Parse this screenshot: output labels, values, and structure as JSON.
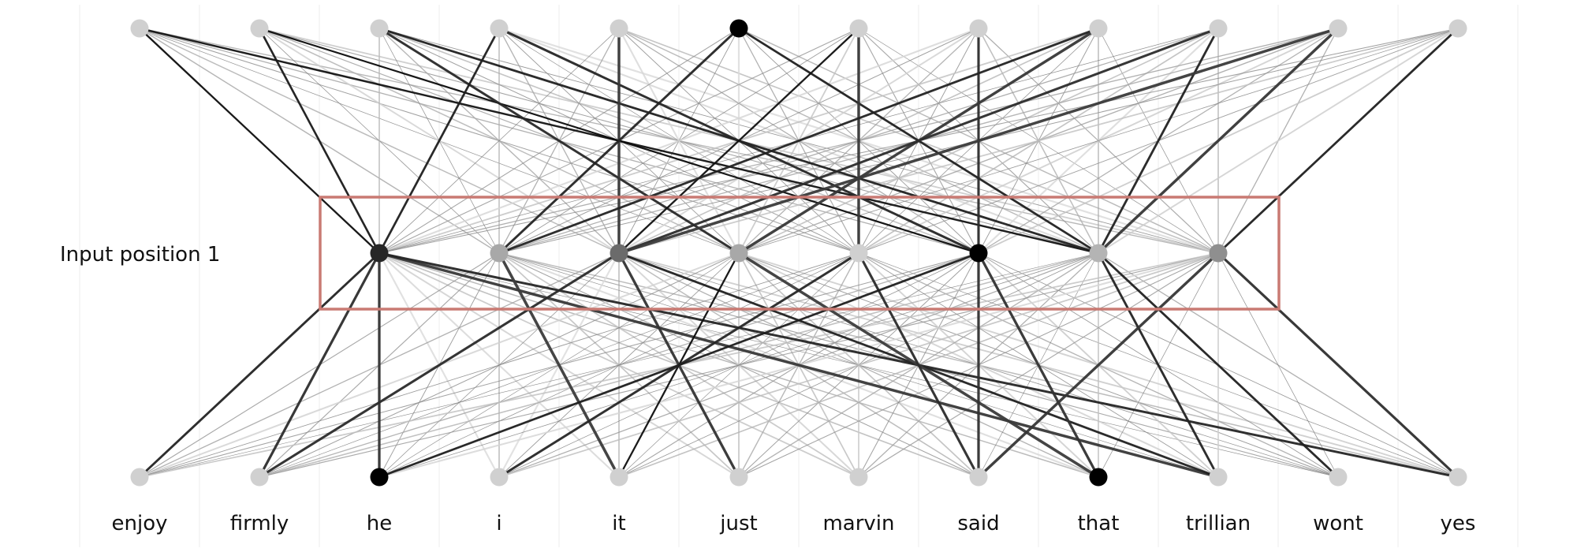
{
  "words": [
    "enjoy",
    "firmly",
    "he",
    "i",
    "it",
    "just",
    "marvin",
    "said",
    "that",
    "trillian",
    "wont",
    "yes"
  ],
  "row_label": "Input position 1",
  "highlight_color": "#c97a73",
  "layers": [
    {
      "name": "top",
      "node_shades": [
        "#d0d0d0",
        "#d0d0d0",
        "#d0d0d0",
        "#d0d0d0",
        "#d0d0d0",
        "#000000",
        "#d0d0d0",
        "#d0d0d0",
        "#d0d0d0",
        "#d0d0d0",
        "#d0d0d0",
        "#d0d0d0"
      ]
    },
    {
      "name": "middle",
      "node_shades": [
        null,
        null,
        "#262626",
        "#a8a8a8",
        "#6b6b6b",
        "#a8a8a8",
        "#d0d0d0",
        "#000000",
        "#b4b4b4",
        "#8f8f8f",
        null,
        null
      ]
    },
    {
      "name": "bottom",
      "node_shades": [
        "#d0d0d0",
        "#d0d0d0",
        "#000000",
        "#d0d0d0",
        "#d0d0d0",
        "#d0d0d0",
        "#d0d0d0",
        "#d0d0d0",
        "#000000",
        "#d0d0d0",
        "#d0d0d0",
        "#d0d0d0"
      ]
    }
  ],
  "connections": {
    "top_to_middle_strong": [
      [
        0,
        2
      ],
      [
        0,
        8
      ],
      [
        1,
        2
      ],
      [
        1,
        7
      ],
      [
        2,
        5
      ],
      [
        2,
        8
      ],
      [
        3,
        2
      ],
      [
        3,
        7
      ],
      [
        4,
        4
      ],
      [
        5,
        3
      ],
      [
        5,
        8
      ],
      [
        6,
        4
      ],
      [
        6,
        6
      ],
      [
        7,
        7
      ],
      [
        8,
        3
      ],
      [
        8,
        5
      ],
      [
        9,
        4
      ],
      [
        9,
        8
      ],
      [
        10,
        4
      ],
      [
        10,
        8
      ],
      [
        11,
        9
      ]
    ],
    "middle_to_bottom_strong": [
      [
        2,
        0
      ],
      [
        2,
        1
      ],
      [
        2,
        2
      ],
      [
        2,
        9
      ],
      [
        2,
        11
      ],
      [
        3,
        4
      ],
      [
        4,
        1
      ],
      [
        4,
        5
      ],
      [
        4,
        9
      ],
      [
        5,
        4
      ],
      [
        5,
        8
      ],
      [
        6,
        3
      ],
      [
        6,
        7
      ],
      [
        7,
        2
      ],
      [
        7,
        7
      ],
      [
        7,
        8
      ],
      [
        8,
        9
      ],
      [
        8,
        10
      ],
      [
        9,
        7
      ],
      [
        9,
        11
      ]
    ]
  }
}
